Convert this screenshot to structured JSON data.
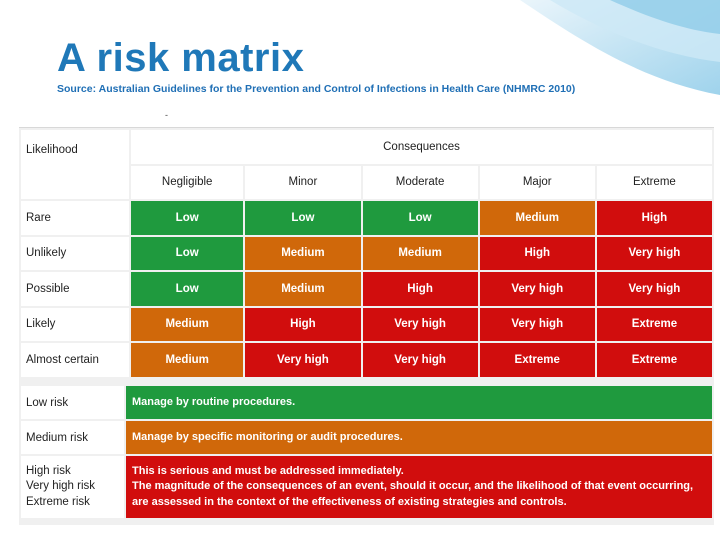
{
  "title": "A risk matrix",
  "source": "Source: Australian Guidelines for the Prevention and Control of Infections in Health Care (NHMRC 2010)",
  "dash": "-",
  "matrix": {
    "likelihood_label": "Likelihood",
    "consequences_label": "Consequences",
    "columns": [
      "Negligible",
      "Minor",
      "Moderate",
      "Major",
      "Extreme"
    ],
    "rows": [
      {
        "label": "Rare",
        "cells": [
          "Low",
          "Low",
          "Low",
          "Medium",
          "High"
        ]
      },
      {
        "label": "Unlikely",
        "cells": [
          "Low",
          "Medium",
          "Medium",
          "High",
          "Very high"
        ]
      },
      {
        "label": "Possible",
        "cells": [
          "Low",
          "Medium",
          "High",
          "Very high",
          "Very high"
        ]
      },
      {
        "label": "Likely",
        "cells": [
          "Medium",
          "High",
          "Very high",
          "Very high",
          "Extreme"
        ]
      },
      {
        "label": "Almost certain",
        "cells": [
          "Medium",
          "Very high",
          "Very high",
          "Extreme",
          "Extreme"
        ]
      }
    ]
  },
  "legend": {
    "low": {
      "label": "Low risk",
      "desc": "Manage by routine procedures."
    },
    "medium": {
      "label": "Medium risk",
      "desc": "Manage by specific monitoring or audit procedures."
    },
    "high": {
      "labels": [
        "High risk",
        "Very high risk",
        "Extreme risk"
      ],
      "desc_line1": "This is serious and must be addressed immediately.",
      "desc_line2": "The magnitude of the consequences of an event, should it occur, and the likelihood of that event occurring, are assessed in the context of the effectiveness of existing strategies and controls."
    }
  },
  "colors": {
    "title": "#1f78b8",
    "low": "#1f9a3e",
    "medium": "#d0680a",
    "high": "#d10d0d"
  }
}
